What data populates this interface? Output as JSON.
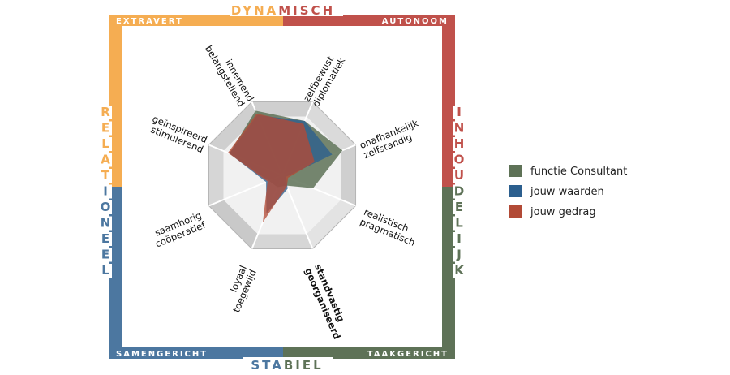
{
  "frame": {
    "top_title_a": "DYNA",
    "top_title_b": "MISCH",
    "bottom_title_a": "STA",
    "bottom_title_b": "BIEL",
    "left_letters_a": [
      "R",
      "E",
      "L",
      "A",
      "T"
    ],
    "left_letters_b": [
      "I",
      "O",
      "N",
      "E",
      "E",
      "L"
    ],
    "right_letters_a": [
      "I",
      "N",
      "H",
      "O",
      "U"
    ],
    "right_letters_b": [
      "D",
      "E",
      "L",
      "I",
      "J",
      "K"
    ],
    "corner_tl": "EXTRAVERT",
    "corner_tr": "AUTONOOM",
    "corner_bl": "SAMENGERICHT",
    "corner_br": "TAAKGERICHT",
    "colors": {
      "orange": "#f5ad52",
      "red": "#c0514b",
      "blue": "#4c77a0",
      "green": "#5e7257"
    }
  },
  "traits": [
    {
      "l1": "innemend",
      "l2": "belangstellend",
      "bold": false
    },
    {
      "l1": "zelfbewust",
      "l2": "diplomatiek",
      "bold": false
    },
    {
      "l1": "onafhankelijk",
      "l2": "zelfstandig",
      "bold": false
    },
    {
      "l1": "realistisch",
      "l2": "pragmatisch",
      "bold": false
    },
    {
      "l1": "standvastig",
      "l2": "georganiseerd",
      "bold": true
    },
    {
      "l1": "loyaal",
      "l2": "toegewijd",
      "bold": false
    },
    {
      "l1": "saamhorig",
      "l2": "coöperatief",
      "bold": false
    },
    {
      "l1": "geïnspireerd",
      "l2": "stimulerend",
      "bold": false
    }
  ],
  "legend": [
    {
      "label": "functie Consultant",
      "color": "#5e7257"
    },
    {
      "label": "jouw waarden",
      "color": "#2c5f8e"
    },
    {
      "label": "jouw gedrag",
      "color": "#b24a36"
    }
  ],
  "chart_data": {
    "type": "radar",
    "axes": [
      "innemend / belangstellend",
      "zelfbewust / diplomatiek",
      "onafhankelijk / zelfstandig",
      "realistisch / pragmatisch",
      "standvastig / georganiseerd",
      "loyaal / toegewijd",
      "saamhorig / coöperatief",
      "geïnspireerd / stimulerend"
    ],
    "range": [
      0,
      1
    ],
    "series": [
      {
        "name": "functie Consultant",
        "values": [
          0.88,
          0.74,
          0.82,
          0.42,
          0.14,
          0.16,
          0.18,
          0.72
        ]
      },
      {
        "name": "jouw waarden",
        "values": [
          0.82,
          0.74,
          0.68,
          0.05,
          0.18,
          0.52,
          0.22,
          0.72
        ]
      },
      {
        "name": "jouw gedrag",
        "values": [
          0.84,
          0.7,
          0.44,
          0.08,
          0.15,
          0.64,
          0.2,
          0.74
        ]
      }
    ]
  }
}
